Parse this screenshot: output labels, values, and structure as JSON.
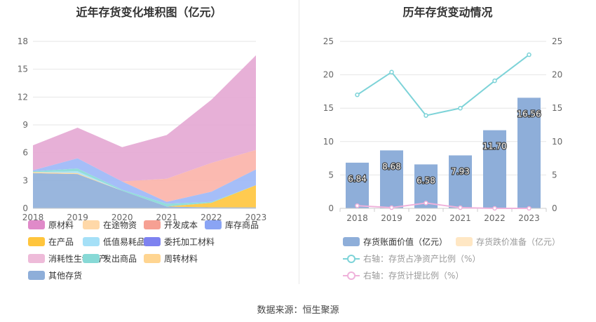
{
  "source": "数据来源：恒生聚源",
  "chart_data": [
    {
      "type": "area",
      "stacked": true,
      "title": "近年存货变化堆积图（亿元）",
      "categories": [
        "2018",
        "2019",
        "2020",
        "2021",
        "2022",
        "2023"
      ],
      "y_ticks": [
        "0",
        "3",
        "6",
        "9",
        "12",
        "15",
        "18"
      ],
      "ylim": [
        0,
        18
      ],
      "series": [
        {
          "name": "其他存货",
          "color": "#8eaed9",
          "values": [
            3.8,
            3.7,
            1.9,
            0.2,
            0.1,
            0.1
          ]
        },
        {
          "name": "在产品",
          "color": "#ffc53d",
          "values": [
            0,
            0,
            0,
            0,
            0.5,
            2.4
          ]
        },
        {
          "name": "周转材料",
          "color": "#ffd591",
          "values": [
            0.1,
            0.1,
            0,
            0,
            0,
            0
          ]
        },
        {
          "name": "低值易耗品",
          "color": "#a5e0f7",
          "values": [
            0,
            0.2,
            0,
            0,
            0,
            0
          ]
        },
        {
          "name": "发出商品",
          "color": "#87d9d6",
          "values": [
            0.1,
            0.3,
            0.1,
            0.3,
            0.1,
            0
          ]
        },
        {
          "name": "库存商品",
          "color": "#9bb7f7",
          "values": [
            0.1,
            1.1,
            0.9,
            0.2,
            1.1,
            1.7
          ]
        },
        {
          "name": "开发成本",
          "color": "#fbb3a9",
          "values": [
            0,
            0,
            0,
            2.5,
            3.1,
            2.1
          ]
        },
        {
          "name": "原材料",
          "color": "#e4a7d3",
          "values": [
            2.7,
            3.3,
            3.7,
            4.7,
            6.8,
            10.2
          ]
        },
        {
          "name": "在途物资",
          "color": "#ffd8a8",
          "values": [
            0,
            0,
            0,
            0,
            0,
            0
          ]
        },
        {
          "name": "委托加工材料",
          "color": "#7d82f0",
          "values": [
            0,
            0,
            0,
            0,
            0,
            0
          ]
        },
        {
          "name": "消耗性生物资产",
          "color": "#eebbd9",
          "values": [
            0,
            0,
            0,
            0,
            0,
            0
          ]
        }
      ],
      "legend": {
        "position": "bottom",
        "rows": [
          [
            {
              "label": "原材料",
              "color": "#e08ac9"
            },
            {
              "label": "在途物资",
              "color": "#ffd8a8"
            },
            {
              "label": "开发成本",
              "color": "#f6a093"
            },
            {
              "label": "库存商品",
              "color": "#8aa4f4"
            }
          ],
          [
            {
              "label": "在产品",
              "color": "#ffc53d"
            },
            {
              "label": "低值易耗品",
              "color": "#a5e0f7"
            },
            {
              "label": "委托加工材料",
              "color": "#7d82f0"
            }
          ],
          [
            {
              "label": "消耗性生物资产",
              "color": "#eebbd9"
            },
            {
              "label": "发出商品",
              "color": "#87d9d6"
            },
            {
              "label": "周转材料",
              "color": "#ffd591"
            }
          ],
          [
            {
              "label": "其他存货",
              "color": "#8eaed9"
            }
          ]
        ]
      }
    },
    {
      "type": "bar+line",
      "title": "历年存货变动情况",
      "categories": [
        "2018",
        "2019",
        "2020",
        "2021",
        "2022",
        "2023"
      ],
      "y_ticks_left": [
        "0",
        "5",
        "10",
        "15",
        "20",
        "25"
      ],
      "y_ticks_right": [
        "0",
        "5",
        "10",
        "15",
        "20",
        "25"
      ],
      "ylim": [
        0,
        25
      ],
      "bars": {
        "name": "存货账面价值（亿元）",
        "color": "#8eaed9",
        "values": [
          6.84,
          8.68,
          6.58,
          7.93,
          11.7,
          16.56
        ],
        "labels": [
          "6.84",
          "8.68",
          "6.58",
          "7.93",
          "11.70",
          "16.56"
        ]
      },
      "bars_reserve": {
        "name": "存货跌价准备（亿元）",
        "color": "#ffe7c4",
        "values": [
          0,
          0,
          0,
          0,
          0,
          0
        ]
      },
      "lines": [
        {
          "name": "右轴：存货占净资产比例（%）",
          "color": "#7dd3d8",
          "values": [
            17.0,
            20.4,
            13.9,
            15.0,
            19.1,
            23.0
          ]
        },
        {
          "name": "右轴：存货计提比例（%）",
          "color": "#efb2db",
          "values": [
            0.4,
            0.1,
            0.8,
            0.1,
            0.0,
            0.0
          ]
        }
      ]
    }
  ]
}
